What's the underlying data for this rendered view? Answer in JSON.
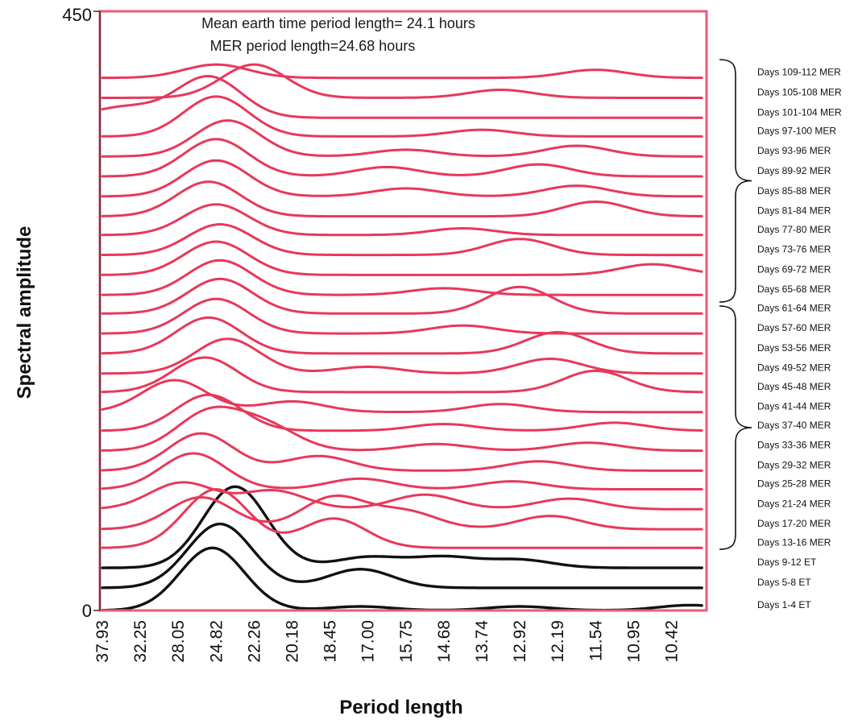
{
  "chart_data": {
    "type": "line",
    "title": "",
    "annotations": [
      "Mean earth time period length= 24.1 hours",
      "MER period length=24.68 hours"
    ],
    "xlabel": "Period length",
    "ylabel": "Spectral amplitude",
    "x_tick_labels": [
      "37.93",
      "32.25",
      "28.05",
      "24.82",
      "22.26",
      "20.18",
      "18.45",
      "17.00",
      "15.75",
      "14.68",
      "13.74",
      "12.92",
      "12.19",
      "11.54",
      "10.95",
      "10.42"
    ],
    "y_tick_labels": [
      "450",
      "0"
    ],
    "ylim": [
      0,
      450
    ],
    "grid": false,
    "colors": {
      "MER": "#e8385a",
      "ET": "#111111",
      "frame": "#f0587a"
    },
    "series": [
      {
        "name": "Days 1-4 ET",
        "group": "ET",
        "baseline": 0,
        "peaks": [
          [
            2.9,
            47
          ],
          [
            6.8,
            3
          ],
          [
            11.0,
            3
          ],
          [
            15.5,
            4
          ]
        ]
      },
      {
        "name": "Days 5-8 ET",
        "group": "ET",
        "baseline": 17,
        "peaks": [
          [
            3.1,
            48
          ],
          [
            6.8,
            14
          ]
        ]
      },
      {
        "name": "Days 9-12 ET",
        "group": "ET",
        "baseline": 32,
        "peaks": [
          [
            3.5,
            61
          ],
          [
            7.0,
            8
          ],
          [
            9.0,
            8
          ],
          [
            11.0,
            6
          ]
        ]
      },
      {
        "name": "Days 13-16 MER",
        "group": "MER",
        "baseline": 47,
        "peaks": [
          [
            3.0,
            44
          ],
          [
            6.1,
            22
          ]
        ]
      },
      {
        "name": "Days 17-20 MER",
        "group": "MER",
        "baseline": 61,
        "peaks": [
          [
            2.6,
            24
          ],
          [
            6.1,
            24
          ],
          [
            8.0,
            13
          ],
          [
            11.8,
            10
          ]
        ]
      },
      {
        "name": "Days 21-24 MER",
        "group": "MER",
        "baseline": 76,
        "peaks": [
          [
            2.1,
            20
          ],
          [
            4.5,
            14
          ],
          [
            8.5,
            11
          ],
          [
            12.3,
            8
          ]
        ]
      },
      {
        "name": "Days 25-28 MER",
        "group": "MER",
        "baseline": 91,
        "peaks": [
          [
            2.4,
            27
          ],
          [
            6.8,
            8
          ],
          [
            10.8,
            6
          ]
        ]
      },
      {
        "name": "Days 29-32 MER",
        "group": "MER",
        "baseline": 105,
        "peaks": [
          [
            2.6,
            28
          ],
          [
            5.7,
            11
          ],
          [
            11.5,
            7
          ]
        ]
      },
      {
        "name": "Days 33-36 MER",
        "group": "MER",
        "baseline": 120,
        "peaks": [
          [
            2.8,
            28
          ],
          [
            4.3,
            18
          ],
          [
            8.8,
            5
          ],
          [
            12.8,
            6
          ]
        ]
      },
      {
        "name": "Days 37-40 MER",
        "group": "MER",
        "baseline": 135,
        "peaks": [
          [
            2.8,
            27
          ],
          [
            9.0,
            5
          ],
          [
            13.5,
            6
          ]
        ]
      },
      {
        "name": "Days 41-44 MER",
        "group": "MER",
        "baseline": 149,
        "peaks": [
          [
            1.9,
            24
          ],
          [
            5.0,
            8
          ],
          [
            10.5,
            6
          ]
        ]
      },
      {
        "name": "Days 45-48 MER",
        "group": "MER",
        "baseline": 164,
        "peaks": [
          [
            2.7,
            26
          ],
          [
            13.0,
            16
          ]
        ]
      },
      {
        "name": "Days 49-52 MER",
        "group": "MER",
        "baseline": 178,
        "peaks": [
          [
            3.3,
            26
          ],
          [
            7.0,
            5
          ],
          [
            11.8,
            11
          ]
        ]
      },
      {
        "name": "Days 53-56 MER",
        "group": "MER",
        "baseline": 193,
        "peaks": [
          [
            2.8,
            27
          ],
          [
            12.0,
            16
          ]
        ]
      },
      {
        "name": "Days 57-60 MER",
        "group": "MER",
        "baseline": 208,
        "peaks": [
          [
            3.0,
            26
          ],
          [
            9.5,
            6
          ]
        ]
      },
      {
        "name": "Days 61-64 MER",
        "group": "MER",
        "baseline": 223,
        "peaks": [
          [
            3.1,
            26
          ],
          [
            11.0,
            20
          ]
        ]
      },
      {
        "name": "Days 65-68 MER",
        "group": "MER",
        "baseline": 237,
        "peaks": [
          [
            3.1,
            26
          ],
          [
            9.0,
            5
          ]
        ]
      },
      {
        "name": "Days 69-72 MER",
        "group": "MER",
        "baseline": 252,
        "peaks": [
          [
            3.0,
            25
          ],
          [
            14.5,
            8
          ]
        ]
      },
      {
        "name": "Days 73-76 MER",
        "group": "MER",
        "baseline": 267,
        "peaks": [
          [
            3.1,
            23
          ],
          [
            11.0,
            12
          ]
        ]
      },
      {
        "name": "Days 77-80 MER",
        "group": "MER",
        "baseline": 282,
        "peaks": [
          [
            3.0,
            23
          ],
          [
            9.5,
            5
          ]
        ]
      },
      {
        "name": "Days 81-84 MER",
        "group": "MER",
        "baseline": 296,
        "peaks": [
          [
            2.8,
            26
          ],
          [
            13.0,
            11
          ]
        ]
      },
      {
        "name": "Days 85-88 MER",
        "group": "MER",
        "baseline": 311,
        "peaks": [
          [
            3.0,
            27
          ],
          [
            8.0,
            6
          ],
          [
            12.5,
            8
          ]
        ]
      },
      {
        "name": "Days 89-92 MER",
        "group": "MER",
        "baseline": 326,
        "peaks": [
          [
            3.0,
            28
          ],
          [
            7.5,
            7
          ],
          [
            11.5,
            9
          ]
        ]
      },
      {
        "name": "Days 93-96 MER",
        "group": "MER",
        "baseline": 341,
        "peaks": [
          [
            3.3,
            27
          ],
          [
            8.0,
            5
          ],
          [
            12.5,
            8
          ]
        ]
      },
      {
        "name": "Days 97-100 MER",
        "group": "MER",
        "baseline": 356,
        "peaks": [
          [
            3.0,
            30
          ],
          [
            10.0,
            5
          ]
        ]
      },
      {
        "name": "Days 101-104 MER",
        "group": "MER",
        "baseline": 370,
        "peaks": [
          [
            2.8,
            31
          ],
          [
            0.6,
            8
          ]
        ]
      },
      {
        "name": "Days 105-108 MER",
        "group": "MER",
        "baseline": 385,
        "peaks": [
          [
            4.0,
            25
          ],
          [
            10.5,
            6
          ]
        ]
      },
      {
        "name": "Days 109-112 MER",
        "group": "MER",
        "baseline": 400,
        "peaks": [
          [
            3.0,
            10
          ],
          [
            13.0,
            6
          ]
        ]
      }
    ]
  }
}
